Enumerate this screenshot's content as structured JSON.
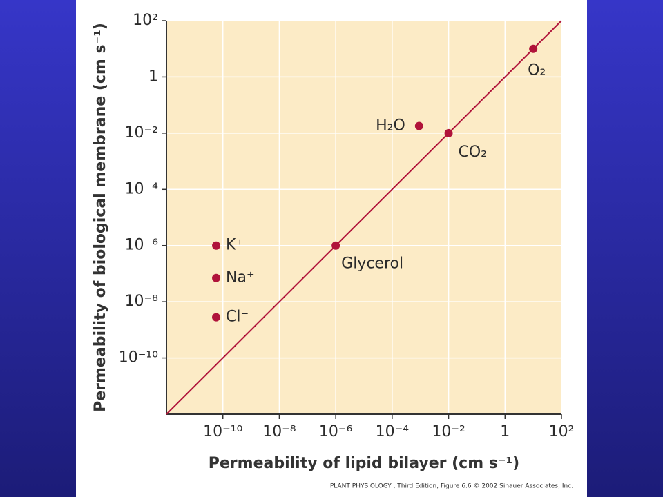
{
  "chart_data": {
    "type": "scatter",
    "x_label": "Permeability of lipid bilayer (cm s⁻¹)",
    "y_label": "Permeability of biological membrane (cm s⁻¹)",
    "source": "PLANT PHYSIOLOGY , Third Edition, Figure 6.6  © 2002 Sinauer Associates, Inc.",
    "point_labels": [
      "K⁺",
      "Na⁺",
      "Cl⁻",
      "Glycerol",
      "H₂O",
      "CO₂",
      "O₂"
    ],
    "x": [
      5.8e-11,
      5.8e-11,
      5.8e-11,
      1e-06,
      0.0009,
      0.01,
      10
    ],
    "values": [
      1e-06,
      7e-08,
      2.8e-09,
      1e-06,
      0.018,
      0.01,
      10
    ],
    "color": "#b0133a",
    "xlog": true,
    "ylog": true,
    "xlim": [
      1e-12,
      100
    ],
    "ylim": [
      1e-12,
      100
    ],
    "xticks": [
      {
        "value": 1e-10,
        "label": "10⁻¹⁰"
      },
      {
        "value": 1e-08,
        "label": "10⁻⁸"
      },
      {
        "value": 1e-06,
        "label": "10⁻⁶"
      },
      {
        "value": 0.0001,
        "label": "10⁻⁴"
      },
      {
        "value": 0.01,
        "label": "10⁻²"
      },
      1,
      {
        "value": 100,
        "label": "10²"
      }
    ],
    "yticks": [
      {
        "value": 1e-10,
        "label": "10⁻¹⁰"
      },
      {
        "value": 1e-08,
        "label": "10⁻⁸"
      },
      {
        "value": 1e-06,
        "label": "10⁻⁶"
      },
      {
        "value": 0.0001,
        "label": "10⁻⁴"
      },
      {
        "value": 0.01,
        "label": "10⁻²"
      },
      1,
      {
        "value": 100,
        "label": "10²"
      }
    ],
    "grid": true
  }
}
